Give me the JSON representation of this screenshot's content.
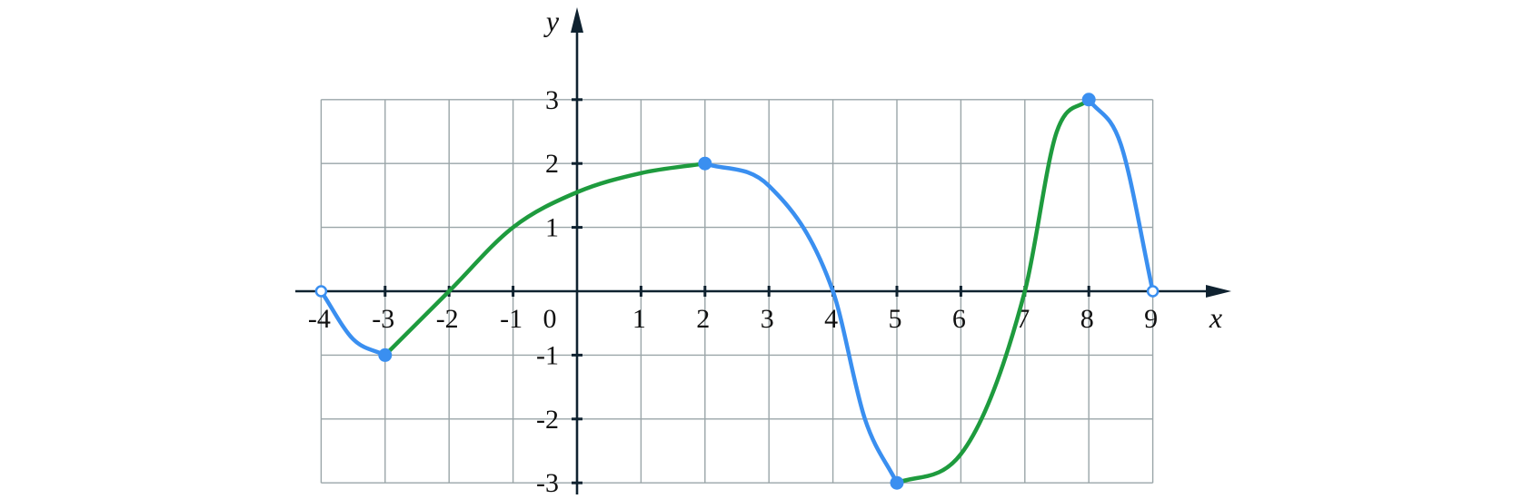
{
  "chart_data": {
    "type": "line",
    "title": "",
    "xlabel": "x",
    "ylabel": "y",
    "xlim": [
      -4,
      9
    ],
    "ylim": [
      -3,
      3
    ],
    "grid": true,
    "colors": {
      "increasing": "#1e9b3e",
      "decreasing": "#3a8ff0",
      "grid": "#9aa5a8",
      "axis": "#0f2230"
    },
    "x_ticks": [
      {
        "value": -4,
        "label": "-4"
      },
      {
        "value": -3,
        "label": "-3"
      },
      {
        "value": -2,
        "label": "-2"
      },
      {
        "value": -1,
        "label": "-1"
      },
      {
        "value": 0,
        "label": "0"
      },
      {
        "value": 1,
        "label": "1"
      },
      {
        "value": 2,
        "label": "2"
      },
      {
        "value": 3,
        "label": "3"
      },
      {
        "value": 4,
        "label": "4"
      },
      {
        "value": 5,
        "label": "5"
      },
      {
        "value": 6,
        "label": "6"
      },
      {
        "value": 7,
        "label": "7"
      },
      {
        "value": 8,
        "label": "8"
      },
      {
        "value": 9,
        "label": "9"
      }
    ],
    "y_ticks": [
      {
        "value": 3,
        "label": "3"
      },
      {
        "value": 2,
        "label": "2"
      },
      {
        "value": 1,
        "label": "1"
      },
      {
        "value": -1,
        "label": "-1"
      },
      {
        "value": -2,
        "label": "-2"
      },
      {
        "value": -3,
        "label": "-3"
      }
    ],
    "segments": [
      {
        "trend": "decreasing",
        "points": [
          [
            -4,
            0
          ],
          [
            -3.5,
            -0.75
          ],
          [
            -3,
            -1
          ]
        ]
      },
      {
        "trend": "increasing",
        "points": [
          [
            -3,
            -1
          ],
          [
            -2,
            0
          ],
          [
            -1,
            1
          ],
          [
            0,
            1.55
          ],
          [
            1,
            1.85
          ],
          [
            2,
            2
          ]
        ]
      },
      {
        "trend": "decreasing",
        "points": [
          [
            2,
            2
          ],
          [
            3,
            1.65
          ],
          [
            4,
            0
          ],
          [
            4.5,
            -2
          ],
          [
            5,
            -3
          ]
        ]
      },
      {
        "trend": "increasing",
        "points": [
          [
            5,
            -3
          ],
          [
            6,
            -2.55
          ],
          [
            7,
            0
          ],
          [
            7.5,
            2.5
          ],
          [
            8,
            3
          ]
        ]
      },
      {
        "trend": "decreasing",
        "points": [
          [
            8,
            3
          ],
          [
            8.5,
            2.3
          ],
          [
            9,
            0
          ]
        ]
      }
    ],
    "points": [
      {
        "x": -4,
        "y": 0,
        "open": true
      },
      {
        "x": -3,
        "y": -1,
        "open": false
      },
      {
        "x": 2,
        "y": 2,
        "open": false
      },
      {
        "x": 5,
        "y": -3,
        "open": false
      },
      {
        "x": 8,
        "y": 3,
        "open": false
      },
      {
        "x": 9,
        "y": 0,
        "open": true
      }
    ]
  }
}
